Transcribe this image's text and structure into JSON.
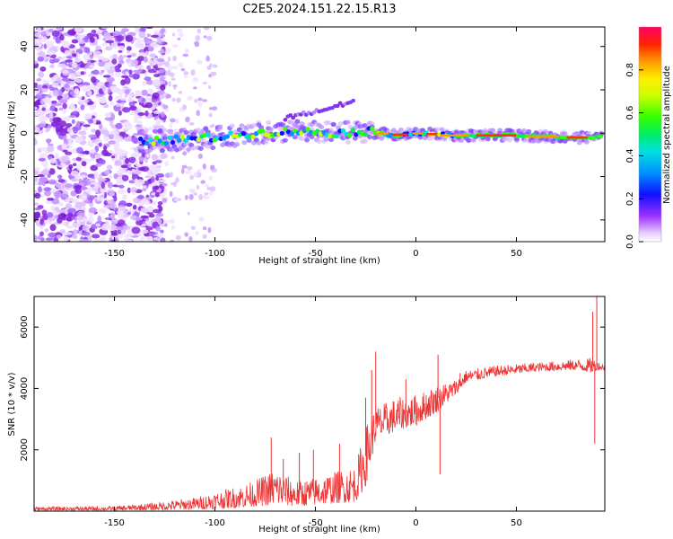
{
  "title": "C2E5.2024.151.22.15.R13",
  "chart_data": [
    {
      "type": "heatmap",
      "xlabel": "Height of straight line (km)",
      "ylabel": "Frequency (Hz)",
      "xlim": [
        -190,
        94
      ],
      "ylim": [
        -50,
        49
      ],
      "xticks": [
        -150,
        -100,
        -50,
        0,
        50
      ],
      "yticks": [
        -40,
        -20,
        0,
        20,
        40
      ],
      "colorbar": {
        "label": "Normalized spectral amplitude",
        "range": [
          0.0,
          1.0
        ],
        "ticks": [
          "0.0",
          "0.2",
          "0.4",
          "0.6",
          "0.8"
        ]
      },
      "main_ridge": {
        "x": [
          -137,
          -120,
          -100,
          -80,
          -60,
          -40,
          -25,
          -10,
          0,
          20,
          50,
          80,
          93
        ],
        "y": [
          -4,
          -3,
          -2,
          0,
          1,
          0,
          1,
          -1,
          0,
          -1,
          -1,
          -2,
          -2
        ]
      },
      "secondary_ridge": {
        "x": [
          -65,
          -45,
          -30
        ],
        "y": [
          7,
          11,
          15
        ]
      }
    },
    {
      "type": "line",
      "xlabel": "Height of straight line (km)",
      "ylabel": "SNR (10 * v/v)",
      "xlim": [
        -190,
        94
      ],
      "ylim": [
        0,
        7000
      ],
      "xticks": [
        -150,
        -100,
        -50,
        0,
        50
      ],
      "yticks": [
        2000,
        4000,
        6000
      ],
      "color": "#ee3333",
      "envelope": {
        "x": [
          -190,
          -150,
          -130,
          -110,
          -90,
          -80,
          -70,
          -60,
          -50,
          -40,
          -30,
          -25,
          -20,
          -10,
          0,
          10,
          20,
          25,
          40,
          60,
          80,
          88,
          90,
          94
        ],
        "lo": [
          20,
          20,
          30,
          50,
          100,
          150,
          200,
          150,
          200,
          250,
          300,
          800,
          2300,
          2600,
          2800,
          3200,
          3800,
          4200,
          4400,
          4550,
          4600,
          4500,
          4600,
          4600
        ],
        "hi": [
          140,
          160,
          280,
          450,
          800,
          1000,
          1400,
          1000,
          1100,
          1300,
          1500,
          2800,
          3400,
          3700,
          3800,
          4100,
          4300,
          4600,
          4750,
          4850,
          4950,
          5000,
          4900,
          4800
        ]
      },
      "spikes": [
        {
          "x": -72,
          "y": 2400
        },
        {
          "x": -66,
          "y": 1700
        },
        {
          "x": -58,
          "y": 1900
        },
        {
          "x": -51,
          "y": 2000
        },
        {
          "x": -38,
          "y": 2200
        },
        {
          "x": -25,
          "y": 3700
        },
        {
          "x": -22,
          "y": 4600
        },
        {
          "x": -20,
          "y": 5200
        },
        {
          "x": -15,
          "y": 3300
        },
        {
          "x": -5,
          "y": 4300
        },
        {
          "x": 11,
          "y": 5100
        },
        {
          "x": 12,
          "y": 1200
        },
        {
          "x": 22,
          "y": 4500
        },
        {
          "x": 88,
          "y": 6500
        },
        {
          "x": 90,
          "y": 7000
        },
        {
          "x": 89,
          "y": 2200
        }
      ]
    }
  ]
}
